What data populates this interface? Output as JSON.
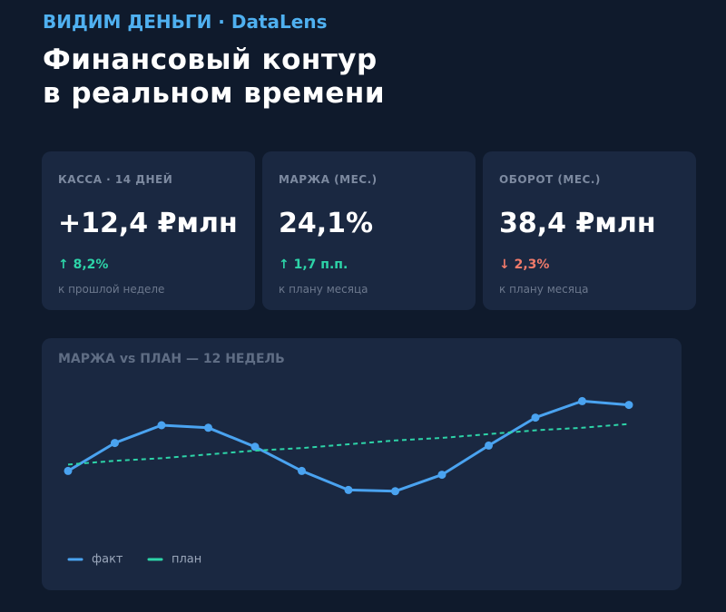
{
  "header": {
    "kicker": "ВИДИМ ДЕНЬГИ · DataLens",
    "title_lines": [
      "Финансовый контур",
      "в реальном времени"
    ]
  },
  "kpis": [
    {
      "label": "КАССА · 14 ДНЕЙ",
      "value": "+12,4 ₽млн",
      "change": "↑ 8,2%",
      "change_color": "#2dd4a8",
      "note": "к прошлой неделе"
    },
    {
      "label": "МАРЖА (МЕС.)",
      "value": "24,1%",
      "change": "↑ 1,7 п.п.",
      "change_color": "#2dd4a8",
      "note": "к плану месяца"
    },
    {
      "label": "ОБОРОТ (МЕС.)",
      "value": "38,4 ₽млн",
      "change": "↓ 2,3%",
      "change_color": "#f07a6a",
      "note": "к плану месяца"
    }
  ],
  "chart_data": {
    "type": "line",
    "title": "МАРЖА vs ПЛАН — 12 НЕДЕЛЬ",
    "categories": [
      null,
      null,
      null,
      null,
      null,
      null,
      null,
      null,
      null,
      null,
      null,
      null,
      null
    ],
    "ylim": [
      0,
      100
    ],
    "legend": "bottom-left",
    "series": [
      {
        "name": "факт",
        "color": "#4aa3f0",
        "style": "solid",
        "markers": true,
        "values": [
          29,
          51,
          65,
          63,
          48,
          29,
          14,
          13,
          26,
          49,
          71,
          84,
          81
        ]
      },
      {
        "name": "план",
        "color": "#2dd4a8",
        "style": "dashed",
        "markers": false,
        "values": [
          34,
          37,
          39,
          42,
          45,
          47,
          50,
          53,
          55,
          58,
          61,
          63,
          66
        ]
      }
    ]
  }
}
